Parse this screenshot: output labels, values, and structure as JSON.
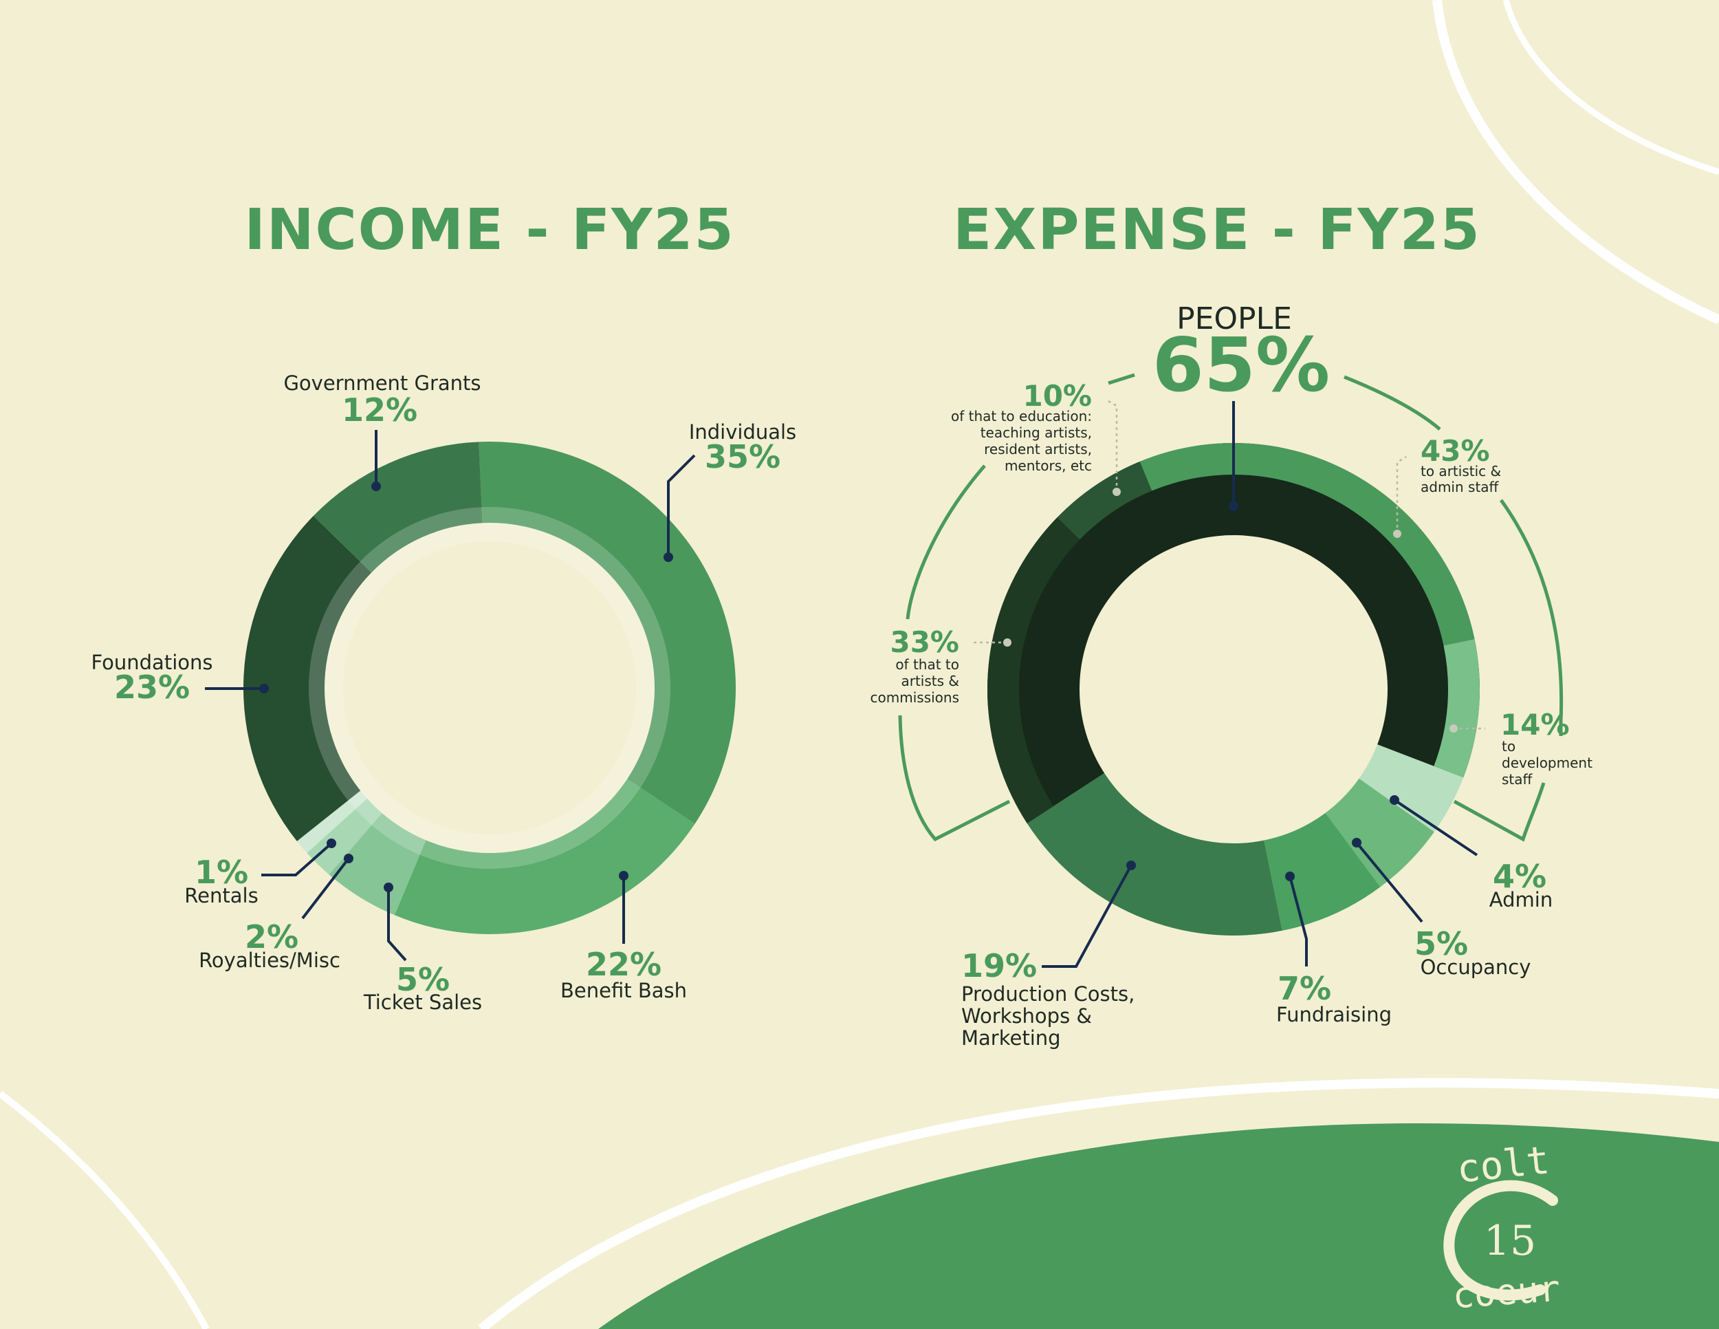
{
  "colors": {
    "background": "#f3efd2",
    "accent": "#4a9a5c",
    "leader": "#172b4f",
    "text": "#1f2a24",
    "logo_cream": "#f3efd2"
  },
  "logo": {
    "top": "colt",
    "number": "15",
    "bottom": "coeur"
  },
  "chart_data": [
    {
      "type": "pie",
      "title": "INCOME - FY25",
      "unit": "%",
      "slices": [
        {
          "label": "Individuals",
          "value": 35,
          "value_label": "35%",
          "color": "#4b985c"
        },
        {
          "label": "Benefit Bash",
          "value": 22,
          "value_label": "22%",
          "color": "#5aad6c"
        },
        {
          "label": "Ticket Sales",
          "value": 5,
          "value_label": "5%",
          "color": "#86c596"
        },
        {
          "label": "Royalties/Misc",
          "value": 2,
          "value_label": "2%",
          "color": "#a8d7b4"
        },
        {
          "label": "Rentals",
          "value": 1,
          "value_label": "1%",
          "color": "#cfe9d4"
        },
        {
          "label": "Foundations",
          "value": 23,
          "value_label": "23%",
          "color": "#264e31"
        },
        {
          "label": "Government Grants",
          "value": 12,
          "value_label": "12%",
          "color": "#3a784c"
        }
      ]
    },
    {
      "type": "pie",
      "title": "EXPENSE - FY25",
      "unit": "%",
      "slices": [
        {
          "label": "PEOPLE",
          "value": 65,
          "value_label": "65%",
          "color": "#16291a"
        },
        {
          "label": "Admin",
          "value": 4,
          "value_label": "4%",
          "color": "#b7dfc0"
        },
        {
          "label": "Occupancy",
          "value": 5,
          "value_label": "5%",
          "color": "#6cb87d"
        },
        {
          "label": "Fundraising",
          "value": 7,
          "value_label": "7%",
          "color": "#4aa160"
        },
        {
          "label": "Production Costs, Workshops & Marketing",
          "value": 19,
          "value_label": "19%",
          "color": "#3a7c4d"
        }
      ],
      "people_breakdown": [
        {
          "value": 43,
          "value_label": "43%",
          "lines": [
            "to artistic &",
            "admin staff"
          ],
          "color": "#4a9a5c"
        },
        {
          "value": 14,
          "value_label": "14%",
          "lines": [
            "to",
            "development",
            "staff"
          ],
          "color": "#79c08b"
        },
        {
          "value": 33,
          "value_label": "33%",
          "lines": [
            "of that to",
            "artists &",
            "commissions"
          ],
          "color": "#1e3a23"
        },
        {
          "value": 10,
          "value_label": "10%",
          "lines": [
            "of that to education:",
            "teaching artists,",
            "resident artists,",
            "mentors, etc"
          ],
          "color": "#2a5636"
        }
      ]
    }
  ],
  "income_labels": {
    "individuals": {
      "name": "Individuals",
      "pct": "35%"
    },
    "benefit": {
      "name": "Benefit Bash",
      "pct": "22%"
    },
    "ticket": {
      "name": "Ticket Sales",
      "pct": "5%"
    },
    "royalties": {
      "name": "Royalties/Misc",
      "pct": "2%"
    },
    "rentals": {
      "name": "Rentals",
      "pct": "1%"
    },
    "foundations": {
      "name": "Foundations",
      "pct": "23%"
    },
    "gov": {
      "name": "Government Grants",
      "pct": "12%"
    }
  },
  "expense_labels": {
    "people": {
      "name": "PEOPLE",
      "pct": "65%"
    },
    "p43": {
      "pct": "43%",
      "l1": "to artistic &",
      "l2": "admin staff"
    },
    "p14": {
      "pct": "14%",
      "l1": "to",
      "l2": "development",
      "l3": "staff"
    },
    "p33": {
      "pct": "33%",
      "l1": "of that to",
      "l2": "artists &",
      "l3": "commissions"
    },
    "p10": {
      "pct": "10%",
      "l1": "of that to education:",
      "l2": "teaching artists,",
      "l3": "resident artists,",
      "l4": "mentors, etc"
    },
    "admin": {
      "name": "Admin",
      "pct": "4%"
    },
    "occupancy": {
      "name": "Occupancy",
      "pct": "5%"
    },
    "fundraising": {
      "name": "Fundraising",
      "pct": "7%"
    },
    "production": {
      "pct": "19%",
      "l1": "Production Costs,",
      "l2": "Workshops &",
      "l3": "Marketing"
    }
  }
}
